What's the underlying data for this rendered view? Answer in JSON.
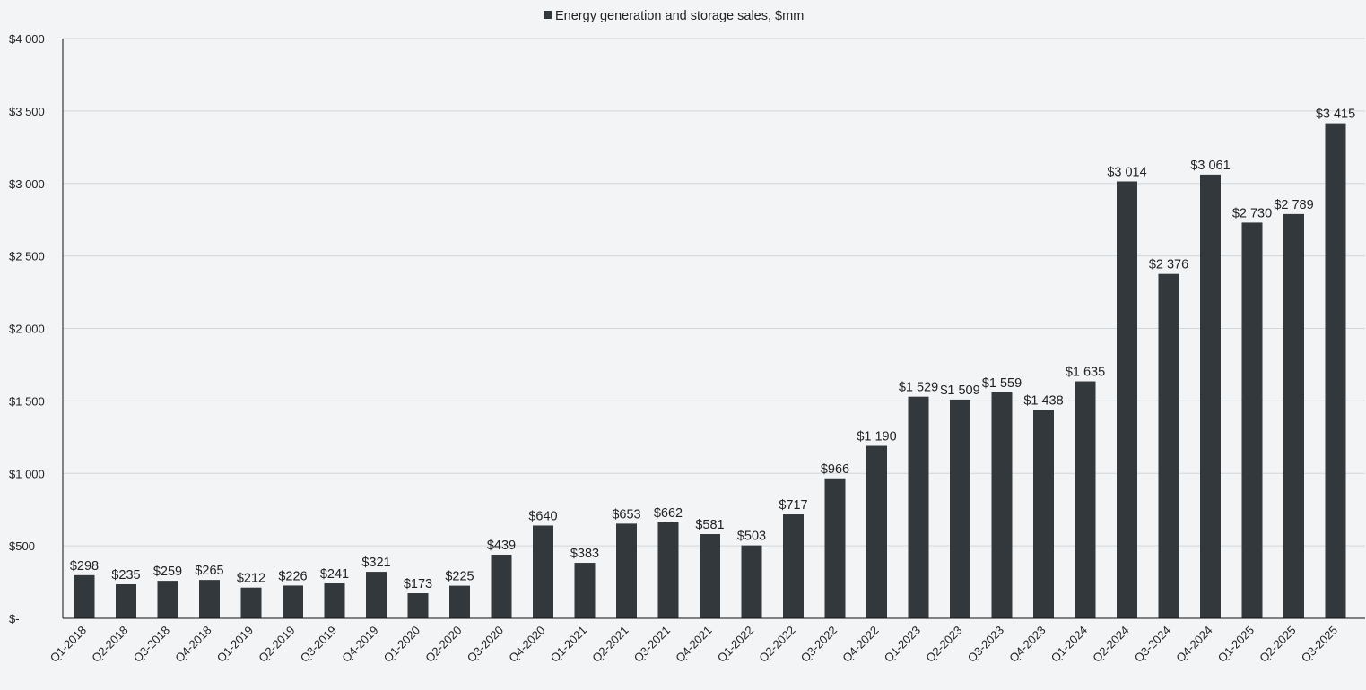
{
  "chart_data": {
    "type": "bar",
    "legend": {
      "label": "Energy generation and storage sales, $mm",
      "position": "top-center"
    },
    "colors": {
      "bar": "#32383c",
      "background": "#f2f4f6",
      "grid": "#d3d6d9"
    },
    "categories": [
      "Q1-2018",
      "Q2-2018",
      "Q3-2018",
      "Q4-2018",
      "Q1-2019",
      "Q2-2019",
      "Q3-2019",
      "Q4-2019",
      "Q1-2020",
      "Q2-2020",
      "Q3-2020",
      "Q4-2020",
      "Q1-2021",
      "Q2-2021",
      "Q3-2021",
      "Q4-2021",
      "Q1-2022",
      "Q2-2022",
      "Q3-2022",
      "Q4-2022",
      "Q1-2023",
      "Q2-2023",
      "Q3-2023",
      "Q4-2023",
      "Q1-2024",
      "Q2-2024",
      "Q3-2024",
      "Q4-2024",
      "Q1-2025",
      "Q2-2025",
      "Q3-2025"
    ],
    "values": [
      298,
      235,
      259,
      265,
      212,
      226,
      241,
      321,
      173,
      225,
      439,
      640,
      383,
      653,
      662,
      581,
      503,
      717,
      966,
      1190,
      1529,
      1509,
      1559,
      1438,
      1635,
      3014,
      2376,
      3061,
      2730,
      2789,
      3415
    ],
    "data_labels": [
      "$298",
      "$235",
      "$259",
      "$265",
      "$212",
      "$226",
      "$241",
      "$321",
      "$173",
      "$225",
      "$439",
      "$640",
      "$383",
      "$653",
      "$662",
      "$581",
      "$503",
      "$717",
      "$966",
      "$1 190",
      "$1 529",
      "$1 509",
      "$1 559",
      "$1 438",
      "$1 635",
      "$3 014",
      "$2 376",
      "$3 061",
      "$2 730",
      "$2 789",
      "$3 415"
    ],
    "y_ticks": [
      0,
      500,
      1000,
      1500,
      2000,
      2500,
      3000,
      3500,
      4000
    ],
    "y_tick_labels": [
      "$-",
      "$500",
      "$1 000",
      "$1 500",
      "$2 000",
      "$2 500",
      "$3 000",
      "$3 500",
      "$4 000"
    ],
    "ylim": [
      0,
      4000
    ],
    "grid": true,
    "xlabel": "",
    "ylabel": ""
  }
}
